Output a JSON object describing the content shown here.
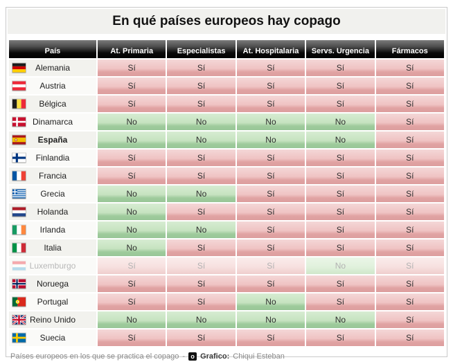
{
  "title": "En qué países europeos hay copago",
  "table": {
    "columns": [
      "País",
      "At. Primaria",
      "Especialistas",
      "At. Hospitalaria",
      "Servs. Urgencia",
      "Fármacos"
    ],
    "yes_label": "Sí",
    "no_label": "No",
    "rows": [
      {
        "country": "Alemania",
        "flag": "de",
        "values": [
          "Sí",
          "Sí",
          "Sí",
          "Sí",
          "Sí"
        ],
        "bold": false,
        "faded": false
      },
      {
        "country": "Austria",
        "flag": "at",
        "values": [
          "Sí",
          "Sí",
          "Sí",
          "Sí",
          "Sí"
        ],
        "bold": false,
        "faded": false
      },
      {
        "country": "Bélgica",
        "flag": "be",
        "values": [
          "Sí",
          "Sí",
          "Sí",
          "Sí",
          "Sí"
        ],
        "bold": false,
        "faded": false
      },
      {
        "country": "Dinamarca",
        "flag": "dk",
        "values": [
          "No",
          "No",
          "No",
          "No",
          "Sí"
        ],
        "bold": false,
        "faded": false
      },
      {
        "country": "España",
        "flag": "es",
        "values": [
          "No",
          "No",
          "No",
          "No",
          "Sí"
        ],
        "bold": true,
        "faded": false
      },
      {
        "country": "Finlandia",
        "flag": "fi",
        "values": [
          "Sí",
          "Sí",
          "Sí",
          "Sí",
          "Sí"
        ],
        "bold": false,
        "faded": false
      },
      {
        "country": "Francia",
        "flag": "fr",
        "values": [
          "Sí",
          "Sí",
          "Sí",
          "Sí",
          "Sí"
        ],
        "bold": false,
        "faded": false
      },
      {
        "country": "Grecia",
        "flag": "gr",
        "values": [
          "No",
          "No",
          "Sí",
          "Sí",
          "Sí"
        ],
        "bold": false,
        "faded": false
      },
      {
        "country": "Holanda",
        "flag": "nl",
        "values": [
          "No",
          "Sí",
          "Sí",
          "Sí",
          "Sí"
        ],
        "bold": false,
        "faded": false
      },
      {
        "country": "Irlanda",
        "flag": "ie",
        "values": [
          "No",
          "No",
          "Sí",
          "Sí",
          "Sí"
        ],
        "bold": false,
        "faded": false
      },
      {
        "country": "Italia",
        "flag": "it",
        "values": [
          "No",
          "Sí",
          "Sí",
          "Sí",
          "Sí"
        ],
        "bold": false,
        "faded": false
      },
      {
        "country": "Luxemburgo",
        "flag": "lu",
        "values": [
          "Sí",
          "Sí",
          "Sí",
          "No",
          "Sí"
        ],
        "bold": false,
        "faded": true
      },
      {
        "country": "Noruega",
        "flag": "no",
        "values": [
          "Sí",
          "Sí",
          "Sí",
          "Sí",
          "Sí"
        ],
        "bold": false,
        "faded": false
      },
      {
        "country": "Portugal",
        "flag": "pt",
        "values": [
          "Sí",
          "Sí",
          "No",
          "Sí",
          "Sí"
        ],
        "bold": false,
        "faded": false
      },
      {
        "country": "Reino Unido",
        "flag": "gb",
        "values": [
          "No",
          "No",
          "No",
          "No",
          "Sí"
        ],
        "bold": false,
        "faded": false
      },
      {
        "country": "Suecia",
        "flag": "se",
        "values": [
          "Sí",
          "Sí",
          "Sí",
          "Sí",
          "Sí"
        ],
        "bold": false,
        "faded": false
      }
    ]
  },
  "footer": {
    "caption": "Países europeos en los que se practica el copago",
    "dash": "-",
    "logo_letter": "o",
    "credit_label": "Grafico:",
    "credit_name": "Chiqui Esteban"
  },
  "colors": {
    "yes_cell": "#e3a8a8",
    "no_cell": "#9fcb9c",
    "header_bg": "#1a1a1a",
    "title_band_bg": "#f1f1ee"
  },
  "chart_data": {
    "type": "table",
    "title": "En qué países europeos hay copago",
    "columns": [
      "País",
      "At. Primaria",
      "Especialistas",
      "At. Hospitalaria",
      "Servs. Urgencia",
      "Fármacos"
    ],
    "rows": [
      [
        "Alemania",
        "Sí",
        "Sí",
        "Sí",
        "Sí",
        "Sí"
      ],
      [
        "Austria",
        "Sí",
        "Sí",
        "Sí",
        "Sí",
        "Sí"
      ],
      [
        "Bélgica",
        "Sí",
        "Sí",
        "Sí",
        "Sí",
        "Sí"
      ],
      [
        "Dinamarca",
        "No",
        "No",
        "No",
        "No",
        "Sí"
      ],
      [
        "España",
        "No",
        "No",
        "No",
        "No",
        "Sí"
      ],
      [
        "Finlandia",
        "Sí",
        "Sí",
        "Sí",
        "Sí",
        "Sí"
      ],
      [
        "Francia",
        "Sí",
        "Sí",
        "Sí",
        "Sí",
        "Sí"
      ],
      [
        "Grecia",
        "No",
        "No",
        "Sí",
        "Sí",
        "Sí"
      ],
      [
        "Holanda",
        "No",
        "Sí",
        "Sí",
        "Sí",
        "Sí"
      ],
      [
        "Irlanda",
        "No",
        "No",
        "Sí",
        "Sí",
        "Sí"
      ],
      [
        "Italia",
        "No",
        "Sí",
        "Sí",
        "Sí",
        "Sí"
      ],
      [
        "Luxemburgo",
        "Sí",
        "Sí",
        "Sí",
        "No",
        "Sí"
      ],
      [
        "Noruega",
        "Sí",
        "Sí",
        "Sí",
        "Sí",
        "Sí"
      ],
      [
        "Portugal",
        "Sí",
        "Sí",
        "No",
        "Sí",
        "Sí"
      ],
      [
        "Reino Unido",
        "No",
        "No",
        "No",
        "No",
        "Sí"
      ],
      [
        "Suecia",
        "Sí",
        "Sí",
        "Sí",
        "Sí",
        "Sí"
      ]
    ]
  }
}
